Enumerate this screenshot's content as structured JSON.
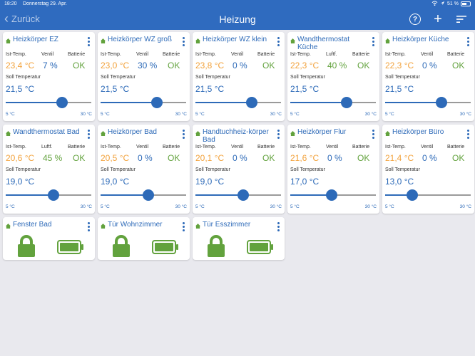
{
  "status": {
    "time": "18:20",
    "date": "Donnerstag 29. Apr.",
    "battery": "51 %"
  },
  "nav": {
    "back": "Zurück",
    "title": "Heizung"
  },
  "colors": {
    "accent": "#2d6ab8",
    "orange": "#f2a23c",
    "green": "#62a23d"
  },
  "headers": {
    "ist": "Ist-Temp.",
    "ventil": "Ventil",
    "luft": "Luftf.",
    "batterie": "Batterie",
    "soll": "Soll Temperatur",
    "min": "5 °C",
    "max": "30 °C"
  },
  "heaters": [
    {
      "name": "Heizkörper EZ",
      "type": "valve",
      "ist": "23,4 °C",
      "mid": "7 %",
      "batt": "OK",
      "soll": "21,5 °C",
      "soll_value": 21.5
    },
    {
      "name": "Heizkörper WZ groß",
      "type": "valve",
      "ist": "23,0 °C",
      "mid": "30 %",
      "batt": "OK",
      "soll": "21,5 °C",
      "soll_value": 21.5
    },
    {
      "name": "Heizkörper WZ klein",
      "type": "valve",
      "ist": "23,8 °C",
      "mid": "0 %",
      "batt": "OK",
      "soll": "21,5 °C",
      "soll_value": 21.5
    },
    {
      "name": "Wandthermostat Küche",
      "type": "humidity",
      "ist": "22,3 °C",
      "mid": "40 %",
      "batt": "OK",
      "soll": "21,5 °C",
      "soll_value": 21.5
    },
    {
      "name": "Heizkörper Küche",
      "type": "valve",
      "ist": "22,3 °C",
      "mid": "0 %",
      "batt": "OK",
      "soll": "21,5 °C",
      "soll_value": 21.5
    },
    {
      "name": "Wandthermostat Bad",
      "type": "humidity",
      "ist": "20,6 °C",
      "mid": "45 %",
      "batt": "OK",
      "soll": "19,0 °C",
      "soll_value": 19.0
    },
    {
      "name": "Heizkörper Bad",
      "type": "valve",
      "ist": "20,5 °C",
      "mid": "0 %",
      "batt": "OK",
      "soll": "19,0 °C",
      "soll_value": 19.0
    },
    {
      "name": "Handtuchheiz-körper Bad",
      "type": "valve",
      "ist": "20,1 °C",
      "mid": "0 %",
      "batt": "OK",
      "soll": "19,0 °C",
      "soll_value": 19.0
    },
    {
      "name": "Heizkörper Flur",
      "type": "valve",
      "ist": "21,6 °C",
      "mid": "0 %",
      "batt": "OK",
      "soll": "17,0 °C",
      "soll_value": 17.0
    },
    {
      "name": "Heizkörper Büro",
      "type": "valve",
      "ist": "21,4 °C",
      "mid": "0 %",
      "batt": "OK",
      "soll": "13,0 °C",
      "soll_value": 13.0
    }
  ],
  "contacts": [
    {
      "name": "Fenster Bad",
      "state_icon": "lock-closed-icon",
      "battery_icon": "battery-full-icon"
    },
    {
      "name": "Tür Wohnzimmer",
      "state_icon": "lock-closed-icon",
      "battery_icon": "battery-full-icon"
    },
    {
      "name": "Tür Esszimmer",
      "state_icon": "lock-closed-icon",
      "battery_icon": "battery-full-icon"
    }
  ]
}
